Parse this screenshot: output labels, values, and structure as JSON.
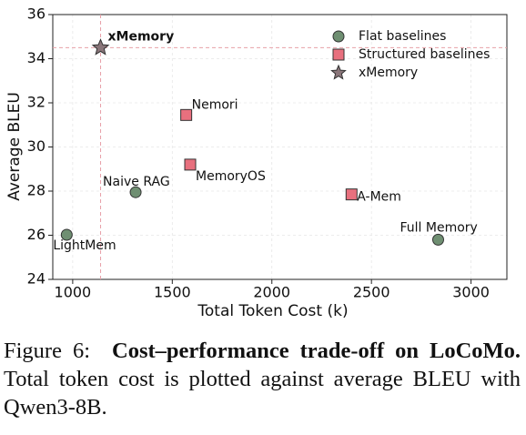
{
  "chart_data": {
    "type": "scatter",
    "xlabel": "Total Token Cost (k)",
    "ylabel": "Average BLEU",
    "xlim": [
      900,
      3180
    ],
    "ylim": [
      24,
      36
    ],
    "xticks": [
      1000,
      1500,
      2000,
      2500,
      3000
    ],
    "yticks": [
      24,
      26,
      28,
      30,
      32,
      34,
      36
    ],
    "grid": true,
    "legend": "upper right",
    "series": [
      {
        "name": "Flat baselines",
        "marker": "circle",
        "color": "#6f8f72",
        "x": [
          970,
          1316,
          2835
        ],
        "values": [
          26.02,
          27.95,
          25.8
        ],
        "labels": [
          "LightMem",
          "Naive RAG",
          "Full Memory"
        ]
      },
      {
        "name": "Structured baselines",
        "marker": "square",
        "color": "#e8707e",
        "x": [
          1570,
          1590,
          2400
        ],
        "values": [
          31.45,
          29.2,
          27.85
        ],
        "labels": [
          "Nemori",
          "MemoryOS",
          "A-Mem"
        ]
      },
      {
        "name": "xMemory",
        "marker": "star",
        "color": "#8a767a",
        "x": [
          1140
        ],
        "values": [
          34.5
        ],
        "labels": [
          "xMemory"
        ]
      }
    ]
  },
  "caption": {
    "label": "Figure 6:",
    "bold": "Cost–performance trade-off on LoCoMo.",
    "text": "Total token cost is plotted against average BLEU with Qwen3-8B."
  }
}
